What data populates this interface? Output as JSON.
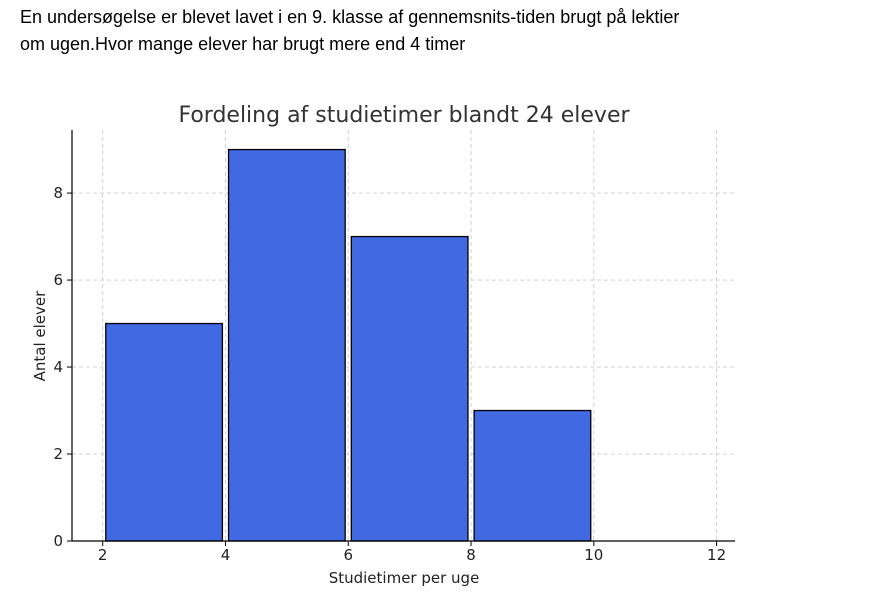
{
  "question": {
    "line1": "En undersøgelse er blevet lavet i en 9. klasse af gennemsnits-tiden brugt på lektier",
    "line2": "om ugen.Hvor mange elever har brugt mere end 4  timer"
  },
  "chart_data": {
    "type": "bar",
    "title": "Fordeling af studietimer blandt 24 elever",
    "xlabel": "Studietimer per uge",
    "ylabel": "Antal elever",
    "bins": [
      {
        "start": 2,
        "end": 4,
        "value": 5
      },
      {
        "start": 4,
        "end": 6,
        "value": 9
      },
      {
        "start": 6,
        "end": 8,
        "value": 7
      },
      {
        "start": 8,
        "end": 10,
        "value": 3
      }
    ],
    "xlim": [
      1.5,
      12.3
    ],
    "ylim": [
      0,
      9.45
    ],
    "xticks": [
      2,
      4,
      6,
      8,
      10,
      12
    ],
    "yticks": [
      0,
      2,
      4,
      6,
      8
    ],
    "grid": true,
    "bar_color": "#4169E1",
    "edge_color": "#000000"
  }
}
